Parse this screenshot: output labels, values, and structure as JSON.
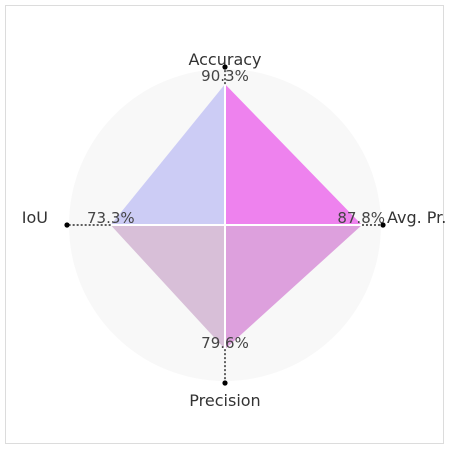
{
  "chart_data": {
    "type": "radar",
    "title": "",
    "axes": [
      {
        "label": "Accuracy",
        "value": 90.3,
        "value_label": "90.3%"
      },
      {
        "label": "Avg. Pr.",
        "value": 87.8,
        "value_label": "87.8%"
      },
      {
        "label": "Precision",
        "value": 79.6,
        "value_label": "79.6%"
      },
      {
        "label": "IoU",
        "value": 73.3,
        "value_label": "73.3%"
      }
    ],
    "range": [
      0,
      100
    ],
    "quadrant_colors": [
      "#ee82ee",
      "#dda0dd",
      "#d8bfd8",
      "#ccccf5"
    ],
    "background_color": "#f8f8f8",
    "grid": false,
    "legend": false
  }
}
